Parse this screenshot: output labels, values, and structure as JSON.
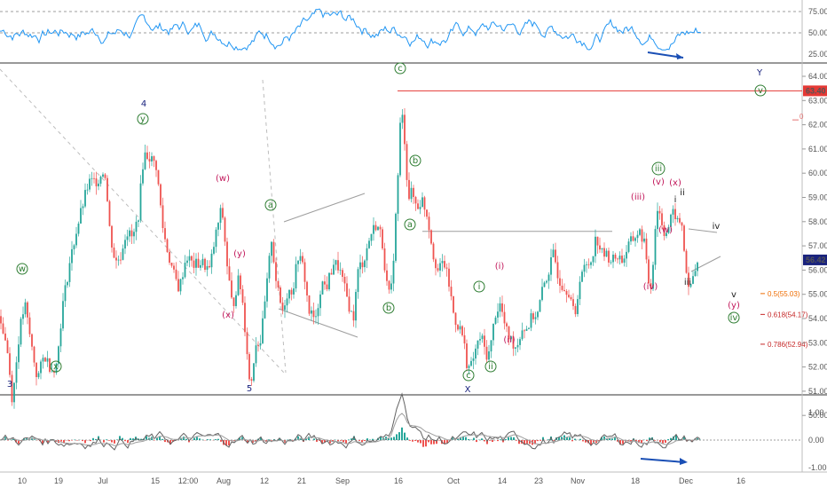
{
  "chart_data": {
    "type": "candlestick",
    "main": {
      "y_ticks": [
        "64.00",
        "63.00",
        "62.00",
        "61.00",
        "60.00",
        "59.00",
        "58.00",
        "57.00",
        "56.00",
        "55.00",
        "54.00",
        "53.00",
        "52.00",
        "51.00",
        "50.00"
      ],
      "price_red": "63.40",
      "price_current": "56.42",
      "fib_labels": [
        "0.5(55.03)",
        "0.618(54.17)",
        "0.786(52.94)"
      ],
      "fib_values": [
        55.03,
        54.17,
        52.94
      ],
      "red_level": 63.4,
      "current_level": 56.42,
      "hline_level": 57.6,
      "fib_partial_label": "0",
      "fib_partial_value": 62.2,
      "price_path": [
        [
          0,
          54.1
        ],
        [
          8,
          52.8
        ],
        [
          14,
          50.6
        ],
        [
          22,
          53.5
        ],
        [
          28,
          54.6
        ],
        [
          34,
          53.2
        ],
        [
          42,
          51.5
        ],
        [
          50,
          52.5
        ],
        [
          58,
          51.9
        ],
        [
          64,
          52.1
        ],
        [
          70,
          54.4
        ],
        [
          78,
          56.2
        ],
        [
          86,
          57.6
        ],
        [
          94,
          58.8
        ],
        [
          100,
          59.6
        ],
        [
          110,
          59.7
        ],
        [
          118,
          60.2
        ],
        [
          124,
          57.5
        ],
        [
          130,
          56.3
        ],
        [
          136,
          56.6
        ],
        [
          142,
          57.6
        ],
        [
          150,
          57.3
        ],
        [
          156,
          58.3
        ],
        [
          162,
          60.8
        ],
        [
          168,
          60.7
        ],
        [
          176,
          60.3
        ],
        [
          184,
          57.6
        ],
        [
          190,
          56.6
        ],
        [
          196,
          55.8
        ],
        [
          202,
          55.2
        ],
        [
          210,
          56.6
        ],
        [
          218,
          56.2
        ],
        [
          228,
          56.3
        ],
        [
          236,
          56.0
        ],
        [
          244,
          57.6
        ],
        [
          250,
          58.6
        ],
        [
          256,
          56.2
        ],
        [
          262,
          54.4
        ],
        [
          268,
          55.6
        ],
        [
          272,
          55.2
        ],
        [
          278,
          52.9
        ],
        [
          282,
          51.0
        ],
        [
          288,
          53.0
        ],
        [
          294,
          53.1
        ],
        [
          300,
          55.1
        ],
        [
          306,
          57.3
        ],
        [
          312,
          55.3
        ],
        [
          318,
          54.3
        ],
        [
          324,
          55.1
        ],
        [
          330,
          55.2
        ],
        [
          336,
          56.6
        ],
        [
          342,
          56.1
        ],
        [
          348,
          54.3
        ],
        [
          356,
          53.9
        ],
        [
          362,
          55.5
        ],
        [
          368,
          55.3
        ],
        [
          376,
          56.3
        ],
        [
          382,
          56.1
        ],
        [
          390,
          55.0
        ],
        [
          398,
          53.9
        ],
        [
          404,
          56.1
        ],
        [
          410,
          56.4
        ],
        [
          418,
          57.5
        ],
        [
          424,
          57.9
        ],
        [
          430,
          57.4
        ],
        [
          436,
          55.4
        ],
        [
          440,
          54.7
        ],
        [
          444,
          56.9
        ],
        [
          448,
          59.5
        ],
        [
          452,
          62.8
        ],
        [
          456,
          61.4
        ],
        [
          460,
          59.0
        ],
        [
          464,
          59.2
        ],
        [
          470,
          58.6
        ],
        [
          476,
          58.9
        ],
        [
          482,
          58.2
        ],
        [
          488,
          56.7
        ],
        [
          494,
          55.9
        ],
        [
          500,
          56.4
        ],
        [
          506,
          55.4
        ],
        [
          512,
          54.0
        ],
        [
          518,
          53.6
        ],
        [
          522,
          53.2
        ],
        [
          526,
          52.2
        ],
        [
          530,
          51.9
        ],
        [
          536,
          52.7
        ],
        [
          542,
          53.3
        ],
        [
          548,
          52.5
        ],
        [
          552,
          52.6
        ],
        [
          558,
          54.2
        ],
        [
          564,
          54.6
        ],
        [
          570,
          53.5
        ],
        [
          576,
          53.1
        ],
        [
          582,
          52.8
        ],
        [
          588,
          53.6
        ],
        [
          594,
          53.6
        ],
        [
          600,
          54.1
        ],
        [
          606,
          54.2
        ],
        [
          612,
          55.3
        ],
        [
          618,
          55.9
        ],
        [
          624,
          56.7
        ],
        [
          630,
          55.6
        ],
        [
          636,
          55.3
        ],
        [
          642,
          55.1
        ],
        [
          648,
          53.9
        ],
        [
          654,
          55.9
        ],
        [
          660,
          56.1
        ],
        [
          666,
          56.4
        ],
        [
          672,
          57.4
        ],
        [
          678,
          56.7
        ],
        [
          684,
          56.6
        ],
        [
          690,
          56.4
        ],
        [
          696,
          56.6
        ],
        [
          702,
          56.4
        ],
        [
          708,
          57.0
        ],
        [
          714,
          57.3
        ],
        [
          720,
          57.6
        ],
        [
          726,
          57.2
        ],
        [
          730,
          55.6
        ],
        [
          734,
          55.3
        ],
        [
          740,
          58.6
        ],
        [
          744,
          58.3
        ],
        [
          748,
          57.6
        ],
        [
          752,
          57.6
        ],
        [
          756,
          58.1
        ],
        [
          760,
          58.4
        ],
        [
          764,
          57.9
        ],
        [
          768,
          58.0
        ],
        [
          772,
          56.5
        ],
        [
          776,
          55.1
        ],
        [
          780,
          55.6
        ],
        [
          784,
          56.0
        ],
        [
          788,
          56.4
        ]
      ]
    },
    "rsi": {
      "y_ticks": [
        "75.00",
        "50.00",
        "25.00"
      ],
      "y_values": [
        75,
        50,
        25
      ]
    },
    "osc": {
      "y_ticks": [
        "1.00",
        "0.00",
        "-1.00"
      ],
      "y_values": [
        1,
        0,
        -1
      ]
    },
    "x_ticks": [
      "10",
      "19",
      "Jul",
      "15",
      "12:00",
      "Aug",
      "12",
      "21",
      "Sep",
      "16",
      "Oct",
      "14",
      "23",
      "Nov",
      "18",
      "Dec",
      "16"
    ],
    "wave_labels": [
      {
        "text": "3",
        "color": "#1a237e",
        "circled": false,
        "x": 11,
        "y": 432
      },
      {
        "text": "w",
        "color": "#2e7d32",
        "circled": true,
        "x": 25,
        "y": 303
      },
      {
        "text": "x",
        "color": "#2e7d32",
        "circled": true,
        "x": 63,
        "y": 413
      },
      {
        "text": "4",
        "color": "#1a237e",
        "circled": false,
        "x": 162,
        "y": 116
      },
      {
        "text": "y",
        "color": "#2e7d32",
        "circled": true,
        "x": 161,
        "y": 134
      },
      {
        "text": "(w)",
        "color": "#c2185b",
        "circled": false,
        "x": 251,
        "y": 200
      },
      {
        "text": "(y)",
        "color": "#c2185b",
        "circled": false,
        "x": 270,
        "y": 285
      },
      {
        "text": "(x)",
        "color": "#c2185b",
        "circled": false,
        "x": 257,
        "y": 354
      },
      {
        "text": "5",
        "color": "#1a237e",
        "circled": false,
        "x": 281,
        "y": 437
      },
      {
        "text": "a",
        "color": "#2e7d32",
        "circled": true,
        "x": 305,
        "y": 231
      },
      {
        "text": "b",
        "color": "#2e7d32",
        "circled": true,
        "x": 438,
        "y": 347
      },
      {
        "text": "c",
        "color": "#2e7d32",
        "circled": true,
        "x": 451,
        "y": 77
      },
      {
        "text": "b",
        "color": "#2e7d32",
        "circled": true,
        "x": 468,
        "y": 181
      },
      {
        "text": "a",
        "color": "#2e7d32",
        "circled": true,
        "x": 462,
        "y": 253
      },
      {
        "text": "c",
        "color": "#2e7d32",
        "circled": true,
        "x": 528,
        "y": 423
      },
      {
        "text": "X",
        "color": "#1a237e",
        "circled": false,
        "x": 527,
        "y": 438
      },
      {
        "text": "(i)",
        "color": "#c2185b",
        "circled": false,
        "x": 563,
        "y": 299
      },
      {
        "text": "i",
        "color": "#2e7d32",
        "circled": true,
        "x": 540,
        "y": 323
      },
      {
        "text": "(ii)",
        "color": "#c2185b",
        "circled": false,
        "x": 574,
        "y": 382
      },
      {
        "text": "ii",
        "color": "#2e7d32",
        "circled": true,
        "x": 553,
        "y": 413
      },
      {
        "text": "(iii)",
        "color": "#c2185b",
        "circled": false,
        "x": 719,
        "y": 221
      },
      {
        "text": "iii",
        "color": "#2e7d32",
        "circled": true,
        "x": 742,
        "y": 190
      },
      {
        "text": "(v)",
        "color": "#c2185b",
        "circled": false,
        "x": 742,
        "y": 204
      },
      {
        "text": "(x)",
        "color": "#c2185b",
        "circled": false,
        "x": 761,
        "y": 205
      },
      {
        "text": "ii",
        "color": "#222222",
        "circled": false,
        "x": 769,
        "y": 216
      },
      {
        "text": "i",
        "color": "#222222",
        "circled": false,
        "x": 761,
        "y": 224
      },
      {
        "text": "(w)",
        "color": "#c2185b",
        "circled": false,
        "x": 750,
        "y": 258
      },
      {
        "text": "(iv)",
        "color": "#c2185b",
        "circled": false,
        "x": 733,
        "y": 322
      },
      {
        "text": "iii",
        "color": "#222222",
        "circled": false,
        "x": 775,
        "y": 317
      },
      {
        "text": "iv",
        "color": "#222222",
        "circled": false,
        "x": 807,
        "y": 254
      },
      {
        "text": "v",
        "color": "#222222",
        "circled": false,
        "x": 827,
        "y": 331
      },
      {
        "text": "(y)",
        "color": "#c2185b",
        "circled": false,
        "x": 827,
        "y": 343
      },
      {
        "text": "iv",
        "color": "#2e7d32",
        "circled": true,
        "x": 827,
        "y": 358
      },
      {
        "text": "Y",
        "color": "#1a237e",
        "circled": false,
        "x": 856,
        "y": 81
      },
      {
        "text": "v",
        "color": "#2e7d32",
        "circled": true,
        "x": 857,
        "y": 102
      }
    ]
  }
}
